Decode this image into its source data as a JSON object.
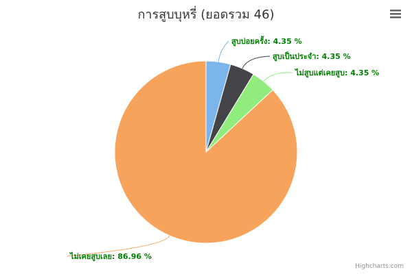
{
  "chart_data": {
    "type": "pie",
    "title": "การสูบบุหรี่ (ยอดรวม 46)",
    "categories": [
      "สูบบ่อยครั้ง",
      "สูบเป็นประจำ",
      "ไม่สูบแต่เคยสูบ",
      "ไม่เคยสูบเลย"
    ],
    "values": [
      4.35,
      4.35,
      4.35,
      86.96
    ],
    "labels": [
      "สูบบ่อยครั้ง: 4.35 %",
      "สูบเป็นประจำ: 4.35 %",
      "ไม่สูบแต่เคยสูบ: 4.35 %",
      "ไม่เคยสูบเลย: 86.96 %"
    ],
    "colors": [
      "#7cb5ec",
      "#434348",
      "#90ed7d",
      "#f7a35c"
    ]
  },
  "toolbar": {
    "menu_icon": "hamburger-menu-icon"
  },
  "credits": "Highcharts.com"
}
